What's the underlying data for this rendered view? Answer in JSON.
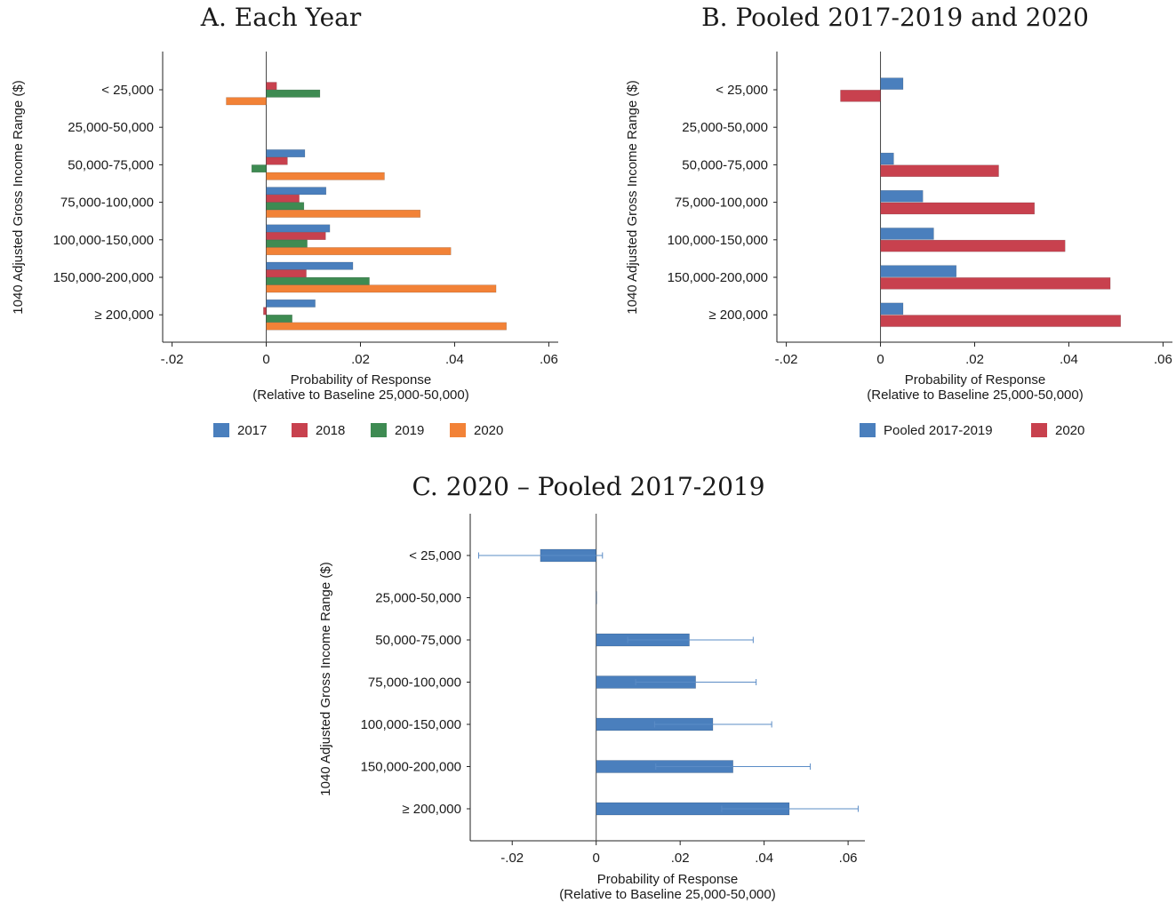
{
  "chart_data": [
    {
      "type": "bar",
      "title": "A. Each Year",
      "xlabel_lines": [
        "Probability of Response",
        "(Relative to Baseline 25,000-50,000)"
      ],
      "ylabel": "1040 Adjusted Gross Income Range ($)",
      "categories": [
        "< 25,000",
        "25,000-50,000",
        "50,000-75,000",
        "75,000-100,000",
        "100,000-150,000",
        "150,000-200,000",
        "≥ 200,000"
      ],
      "xlim": [
        -0.022,
        0.062
      ],
      "xticks": [
        -0.02,
        0,
        0.02,
        0.04,
        0.06
      ],
      "xtick_labels": [
        "-.02",
        "0",
        ".02",
        ".04",
        ".06"
      ],
      "legend_position": "bottom",
      "series": [
        {
          "name": "2017",
          "color": "#4a7fbd",
          "values": [
            null,
            null,
            0.0082,
            0.0127,
            0.0135,
            0.0184,
            0.0104
          ]
        },
        {
          "name": "2018",
          "color": "#c8414e",
          "values": [
            0.0022,
            null,
            0.0045,
            0.007,
            0.0126,
            0.0085,
            -0.0006
          ]
        },
        {
          "name": "2019",
          "color": "#3e8b52",
          "values": [
            0.0114,
            null,
            -0.0031,
            0.008,
            0.0087,
            0.0219,
            0.0055
          ]
        },
        {
          "name": "2020",
          "color": "#f28237",
          "values": [
            -0.0085,
            null,
            0.0251,
            0.0327,
            0.0392,
            0.0488,
            0.051
          ]
        }
      ]
    },
    {
      "type": "bar",
      "title": "B. Pooled 2017-2019 and 2020",
      "xlabel_lines": [
        "Probability of Response",
        "(Relative to Baseline 25,000-50,000)"
      ],
      "ylabel": "1040 Adjusted Gross Income Range ($)",
      "categories": [
        "< 25,000",
        "25,000-50,000",
        "50,000-75,000",
        "75,000-100,000",
        "100,000-150,000",
        "150,000-200,000",
        "≥ 200,000"
      ],
      "xlim": [
        -0.022,
        0.062
      ],
      "xticks": [
        -0.02,
        0,
        0.02,
        0.04,
        0.06
      ],
      "xtick_labels": [
        "-.02",
        "0",
        ".02",
        ".04",
        ".06"
      ],
      "legend_position": "bottom",
      "series": [
        {
          "name": "Pooled 2017-2019",
          "color": "#4a7fbd",
          "values": [
            0.0048,
            null,
            0.0028,
            0.009,
            0.0113,
            0.0161,
            0.0048
          ]
        },
        {
          "name": "2020",
          "color": "#c8414e",
          "values": [
            -0.0085,
            null,
            0.0251,
            0.0327,
            0.0392,
            0.0488,
            0.051
          ]
        }
      ]
    },
    {
      "type": "bar",
      "title": "C. 2020 – Pooled 2017-2019",
      "xlabel_lines": [
        "Probability of Response",
        "(Relative to Baseline 25,000-50,000)"
      ],
      "ylabel": "1040 Adjusted Gross Income Range ($)",
      "categories": [
        "< 25,000",
        "25,000-50,000",
        "50,000-75,000",
        "75,000-100,000",
        "100,000-150,000",
        "150,000-200,000",
        "≥ 200,000"
      ],
      "xlim": [
        -0.03,
        0.064
      ],
      "xticks": [
        -0.02,
        0,
        0.02,
        0.04,
        0.06
      ],
      "xtick_labels": [
        "-.02",
        "0",
        ".02",
        ".04",
        ".06"
      ],
      "series": [
        {
          "color": "#4a7fbd",
          "values": [
            -0.0133,
            0,
            0.0222,
            0.0237,
            0.0278,
            0.0326,
            0.046
          ],
          "ci_low": [
            -0.028,
            null,
            0.0075,
            0.0094,
            0.0139,
            0.0142,
            0.0299
          ],
          "ci_high": [
            0.0015,
            null,
            0.0374,
            0.0381,
            0.0418,
            0.051,
            0.0624
          ]
        }
      ]
    }
  ]
}
